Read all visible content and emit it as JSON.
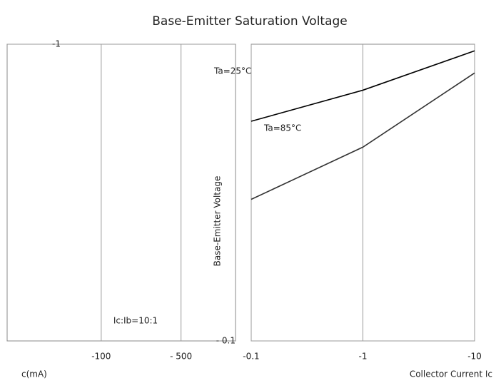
{
  "title": "Base-Emitter Saturation Voltage",
  "chart_data": [
    {
      "type": "line",
      "log_scale": true,
      "grid": true,
      "x_label": "c(mA)",
      "annotation": "Ic:Ib=10:1",
      "xlim": [
        -15,
        -1500
      ],
      "xticks": [
        -100,
        {
          "value": -500,
          "label": "- 500"
        }
      ],
      "ylim": [
        -0.1,
        -1
      ],
      "yticks": [
        -1
      ],
      "x": [],
      "series": []
    },
    {
      "type": "line",
      "log_scale": true,
      "grid": true,
      "x_label": "Collector Current  Ic",
      "y_label": "Base-Emitter Voltage",
      "xlim": [
        -0.1,
        -10
      ],
      "xticks": [
        -0.1,
        -1,
        -10
      ],
      "ylim": [
        -0.1,
        -1
      ],
      "yticks": [
        {
          "value": -0.1,
          "label": "- 0.1"
        }
      ],
      "x": [
        -0.1,
        -1,
        -10
      ],
      "series": [
        {
          "name": "Ta=25°C",
          "color": "#000000",
          "values": [
            -0.55,
            -0.7,
            -0.95
          ]
        },
        {
          "name": "Ta=85°C",
          "color": "#333333",
          "values": [
            -0.3,
            -0.45,
            -0.8
          ]
        }
      ]
    }
  ]
}
